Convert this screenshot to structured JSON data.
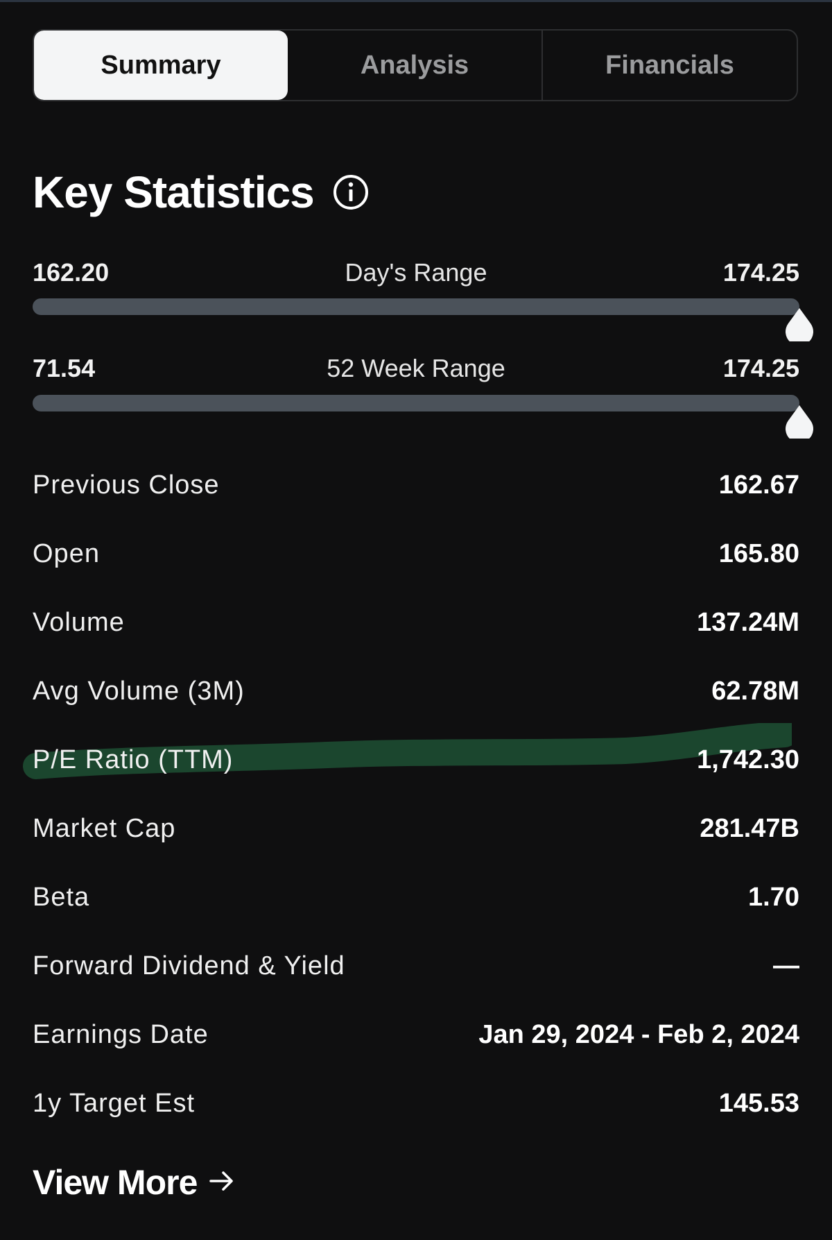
{
  "tabs": [
    {
      "label": "Summary",
      "active": true
    },
    {
      "label": "Analysis",
      "active": false
    },
    {
      "label": "Financials",
      "active": false
    }
  ],
  "heading": {
    "title": "Key Statistics",
    "icon": "info-icon"
  },
  "days_range": {
    "label": "Day's Range",
    "low": "162.20",
    "high": "174.25"
  },
  "week52_range": {
    "label": "52 Week Range",
    "low": "71.54",
    "high": "174.25"
  },
  "stats": [
    {
      "label": "Previous Close",
      "value": "162.67"
    },
    {
      "label": "Open",
      "value": "165.80"
    },
    {
      "label": "Volume",
      "value": "137.24M"
    },
    {
      "label": "Avg Volume (3M)",
      "value": "62.78M"
    },
    {
      "label": "P/E Ratio (TTM)",
      "value": "1,742.30"
    },
    {
      "label": "Market Cap",
      "value": "281.47B"
    },
    {
      "label": "Beta",
      "value": "1.70"
    },
    {
      "label": "Forward Dividend & Yield",
      "value": "—"
    },
    {
      "label": "Earnings Date",
      "value": "Jan 29, 2024 - Feb 2, 2024"
    },
    {
      "label": "1y Target Est",
      "value": "145.53"
    }
  ],
  "view_more": {
    "label": "View More",
    "icon": "arrow-right-icon"
  },
  "colors": {
    "background": "#0f0f10",
    "active_tab": "#f4f5f6",
    "track": "#4b525a",
    "highlight": "#1c4a30"
  }
}
